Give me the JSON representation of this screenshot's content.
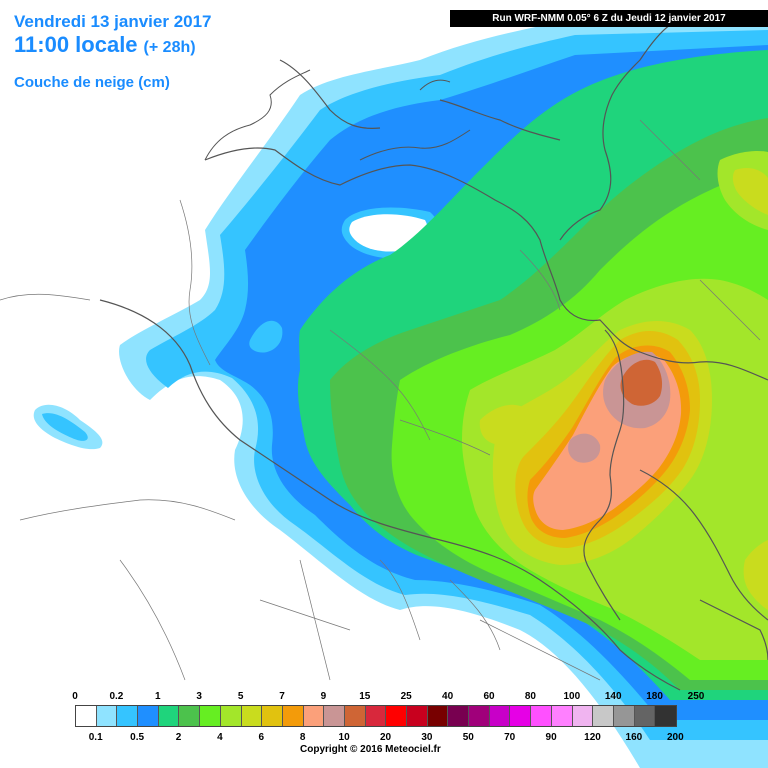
{
  "header": {
    "date": "Vendredi 13 janvier 2017",
    "time": "11:00 locale",
    "offset": "(+ 28h)",
    "parameter": "Couche de neige (cm)"
  },
  "run": "Run WRF-NMM 0.05° 6 Z du Jeudi 12 janvier 2017",
  "legend": {
    "top_labels": [
      "0",
      "0.2",
      "1",
      "3",
      "5",
      "7",
      "9",
      "15",
      "25",
      "40",
      "60",
      "80",
      "100",
      "140",
      "180",
      "250"
    ],
    "bottom_labels": [
      "0.1",
      "0.5",
      "2",
      "4",
      "6",
      "8",
      "10",
      "20",
      "30",
      "50",
      "70",
      "90",
      "120",
      "160",
      "200"
    ],
    "colors": [
      "#ffffff",
      "#8fe3ff",
      "#35c4ff",
      "#1f8fff",
      "#1fd47c",
      "#4cc24c",
      "#66ee22",
      "#a3e62a",
      "#c9dc1e",
      "#e1c20f",
      "#f39b0a",
      "#fba07a",
      "#c99595",
      "#cf6535",
      "#d8283c",
      "#ff0000",
      "#c8001e",
      "#780000",
      "#780050",
      "#a0007a",
      "#c800c8",
      "#e600e6",
      "#ff50ff",
      "#ff80ff",
      "#f0b4f0",
      "#c8c8c8",
      "#969696",
      "#646464",
      "#323232"
    ]
  },
  "copyright": "Copyright © 2016 Meteociel.fr"
}
